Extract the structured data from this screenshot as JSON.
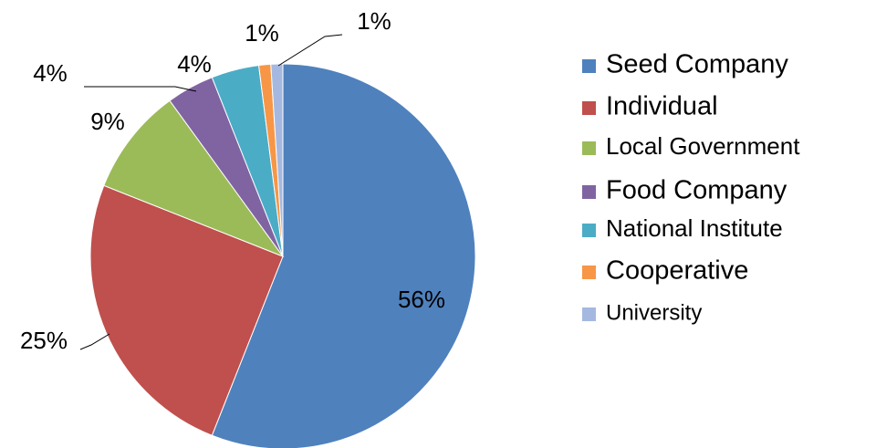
{
  "chart_data": {
    "type": "pie",
    "categories": [
      "Seed Company",
      "Individual",
      "Local Government",
      "Food Company",
      "National Institute",
      "Cooperative",
      "University"
    ],
    "values": [
      56,
      25,
      9,
      4,
      4,
      1,
      1
    ],
    "value_labels": [
      "56%",
      "25%",
      "9%",
      "4%",
      "4%",
      "1%",
      "1%"
    ],
    "colors": [
      "#4f81bd",
      "#c0504d",
      "#9bbb59",
      "#8064a2",
      "#4bacc6",
      "#f79646",
      "#a5b9e0"
    ],
    "legend": "right"
  }
}
